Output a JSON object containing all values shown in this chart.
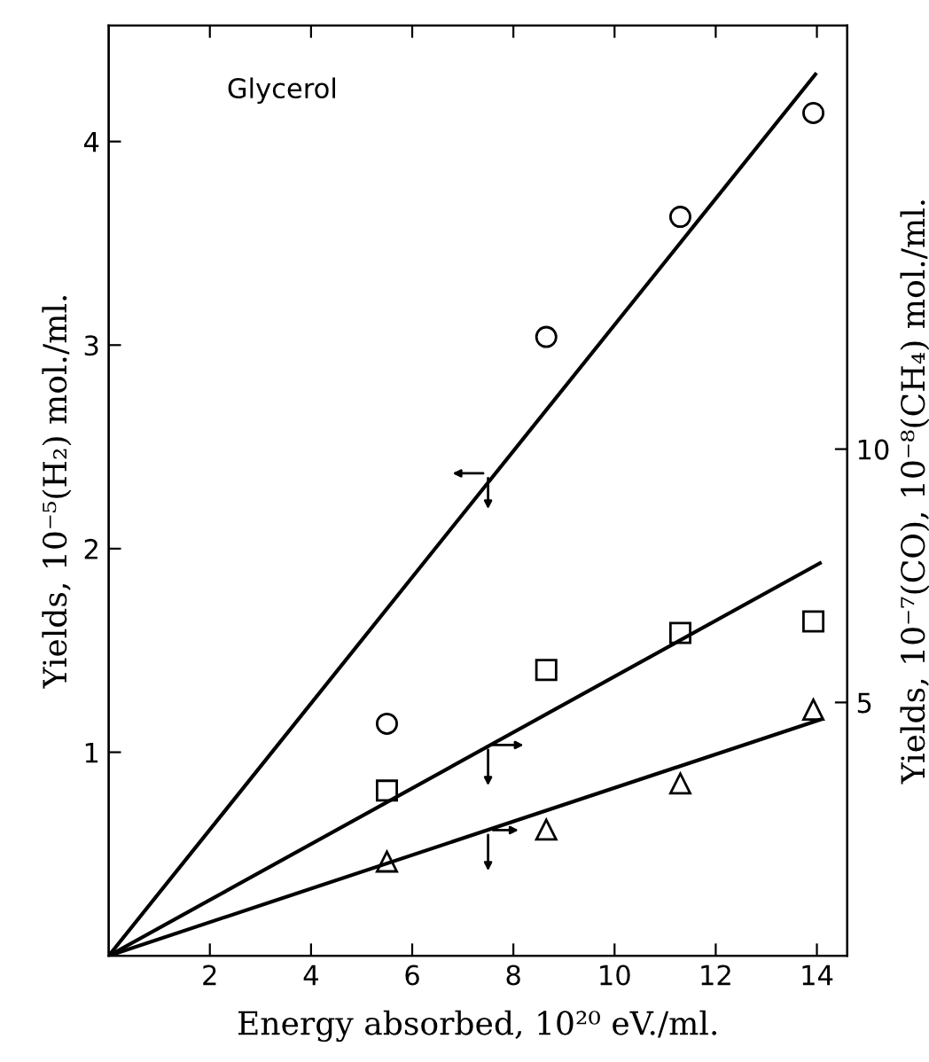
{
  "chart_data": {
    "type": "scatter",
    "xlabel": "Energy absorbed, 10²⁰ eV./ml.",
    "ylabel": "Yields, 10⁻⁵(H₂) mol./ml.",
    "y2label": "Yields, 10⁻⁷(CO), 10⁻⁸(CH₄) mol./ml.",
    "annotations": [
      "Glycerol"
    ],
    "xlim": [
      0,
      14.6
    ],
    "xticks": [
      2,
      4,
      6,
      8,
      10,
      12,
      14
    ],
    "ylim": [
      0,
      4.57
    ],
    "yticks": [
      1,
      2,
      3,
      4
    ],
    "y2lim": [
      0,
      18.36
    ],
    "y2ticks": [
      5,
      10
    ],
    "grid": false,
    "legend": false,
    "series": [
      {
        "marker": "circle",
        "color": "#000000",
        "axis": "y",
        "x": [
          5.5,
          8.65,
          11.3,
          13.93
        ],
        "values": [
          1.14,
          3.04,
          3.63,
          4.14
        ]
      },
      {
        "marker": "square",
        "color": "#000000",
        "axis": "y2",
        "x": [
          5.5,
          8.65,
          11.3,
          13.93
        ],
        "values": [
          3.26,
          5.64,
          6.37,
          6.6
        ]
      },
      {
        "marker": "triangle",
        "color": "#000000",
        "axis": "y2",
        "x": [
          5.5,
          8.65,
          11.3,
          13.93
        ],
        "values": [
          1.86,
          2.49,
          3.4,
          4.86
        ]
      },
      {
        "type": "line",
        "marker": "none",
        "line_style": "solid",
        "color": "#000000",
        "axis": "y",
        "x": [
          0,
          13.97
        ],
        "values": [
          0,
          4.33
        ]
      },
      {
        "type": "line",
        "marker": "none",
        "line_style": "solid",
        "color": "#000000",
        "axis": "y2",
        "x": [
          0,
          14.06
        ],
        "values": [
          0,
          7.75
        ]
      },
      {
        "type": "line",
        "marker": "none",
        "line_style": "solid",
        "color": "#000000",
        "axis": "y2",
        "x": [
          0,
          14.06
        ],
        "values": [
          0,
          4.66
        ]
      }
    ]
  }
}
